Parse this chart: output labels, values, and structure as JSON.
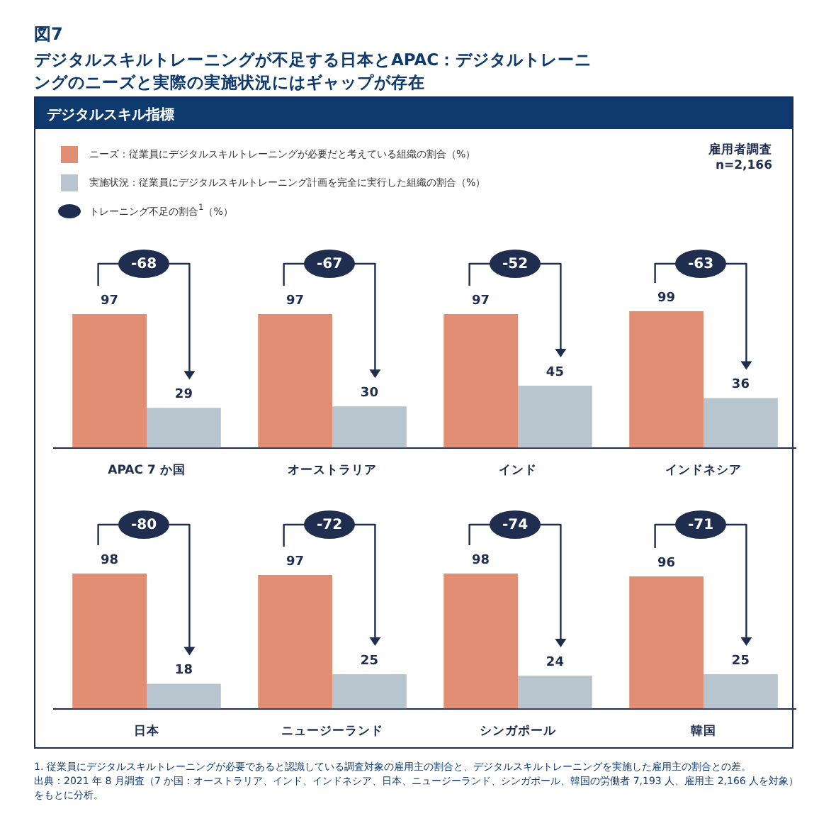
{
  "chart_data": [
    {
      "type": "bar",
      "title": "図7",
      "subtitle": "デジタルスキルトレーニングが不足する日本とAPAC：デジタルトレーニングのニーズと実際の実施状況にはギャップが存在",
      "legend": "top left",
      "data_labels": true,
      "tick_labels": "x",
      "categories": [
        "APAC 7 か国",
        "オーストラリア",
        "インド",
        "インドネシア"
      ],
      "series": [
        {
          "name": "ニーズ：従業員にデジタルスキルトレーニングが必要だと考えている組織の割合（%）",
          "color": "#e28e74",
          "values": [
            97,
            97,
            97,
            99
          ]
        },
        {
          "name": "実施状況：従業員にデジタルスキルトレーニング計画を完全に実行した組織の割合（%）",
          "color": "#b8c4ce",
          "values": [
            29,
            30,
            45,
            36
          ]
        }
      ],
      "annotations": [
        "-68",
        "-67",
        "-52",
        "-63",
        "トレーニング不足の割合$^{1}$（%）",
        "デジタルスキル指標",
        "雇用者調査",
        "n=2,166",
        "1.  従業員にデジタルスキルトレーニングが必要であると認識している調査対象の雇用主の割合と、デジタルスキルトレーニングを実施した雇用主の割合との差。",
        "出典：2021 年 8 月調査（7 か国：オーストラリア、インド、インドネシア、日本、ニュージーランド、シンガポール、韓国の労働者 7,193 人、雇用主 2,166 人を対象）をもとに分析。"
      ]
    },
    {
      "type": "bar",
      "data_labels": true,
      "tick_labels": "x",
      "categories": [
        "日本",
        "ニュージーランド",
        "シンガポール",
        "韓国"
      ],
      "series": [
        {
          "color": "#e28e74",
          "values": [
            98,
            97,
            98,
            96
          ]
        },
        {
          "color": "#b8c4ce",
          "values": [
            18,
            25,
            24,
            25
          ]
        }
      ],
      "annotations": [
        "-80",
        "-72",
        "-74",
        "-71"
      ]
    }
  ]
}
